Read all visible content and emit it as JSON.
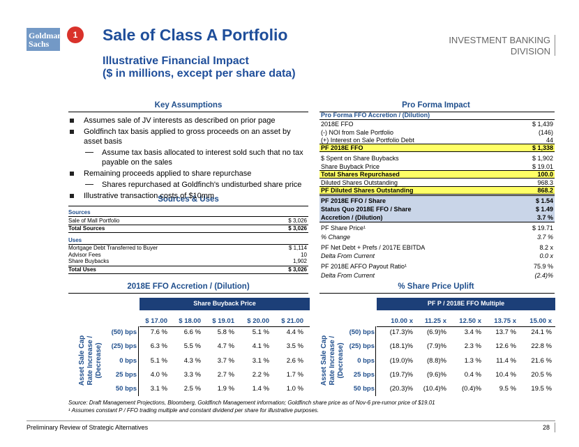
{
  "header": {
    "logo": [
      "Goldman",
      "Sachs"
    ],
    "badge": "1",
    "title": "Sale of Class A Portfolio",
    "subtitle": [
      "Illustrative Financial Impact",
      "($ in millions, except per share data)"
    ],
    "division": [
      "INVESTMENT BANKING",
      "DIVISION"
    ]
  },
  "key_assumptions": {
    "title": "Key Assumptions",
    "bullets": [
      {
        "text": "Assumes sale of JV interests as described on prior page",
        "sub": []
      },
      {
        "text": "Goldfinch tax basis applied to gross proceeds on an asset by asset basis",
        "sub": [
          "Assume tax basis allocated to interest sold such that no tax payable on the sales"
        ]
      },
      {
        "text": "Remaining proceeds applied to share repurchase",
        "sub": [
          "Shares repurchased at Goldfinch's undisturbed share price"
        ]
      },
      {
        "text": "Illustrative transaction costs of $10mm",
        "sub": []
      }
    ]
  },
  "sources_uses": {
    "title": "Sources & Uses",
    "sources_header": "Sources",
    "sources": [
      [
        "Sale of Mall Portfolio",
        "$ 3,026"
      ]
    ],
    "total_sources": [
      "Total Sources",
      "$ 3,026"
    ],
    "uses_header": "Uses",
    "uses": [
      [
        "Mortgage Debt Transferred to Buyer",
        "$ 1,114"
      ],
      [
        "Advisor Fees",
        "10"
      ],
      [
        "Share Buybacks",
        "1,902"
      ]
    ],
    "total_uses": [
      "Total Uses",
      "$ 3,026"
    ]
  },
  "pro_forma": {
    "title": "Pro Forma Impact",
    "header": "Pro Forma FFO Accretion / (Dilution)",
    "rows": [
      [
        "2018E FFO",
        "$ 1,439"
      ],
      [
        "(-) NOI from Sale Portfolio",
        "(146)"
      ],
      [
        "(+) Interest on Sale Portfolio Debt",
        "44"
      ],
      [
        "PF 2018E FFO",
        "$ 1,338"
      ],
      [
        "$ Spent on Share Buybacks",
        "$ 1,902"
      ],
      [
        "Share Buyback Price",
        "$ 19.01"
      ],
      [
        "Total Shares Repurchased",
        "100.0"
      ],
      [
        "Diluted Shares Outstanding",
        "968.3"
      ],
      [
        "PF Diluted Shares Outstanding",
        "868.2"
      ],
      [
        "PF 2018E FFO / Share",
        "$ 1.54"
      ],
      [
        "Status Quo 2018E FFO / Share",
        "$ 1.49"
      ],
      [
        "Accretion / (Dilution)",
        "3.7 %"
      ],
      [
        "PF Share Price¹",
        "$ 19.71"
      ],
      [
        "% Change",
        "3.7 %"
      ],
      [
        "PF Net Debt + Prefs / 2017E EBITDA",
        "8.2 x"
      ],
      [
        "Delta From Current",
        "0.0 x"
      ],
      [
        "PF 2018E AFFO Payout Ratio¹",
        "75.9 %"
      ],
      [
        "Delta From Current",
        "(2.4)%"
      ]
    ]
  },
  "sensitivity_left": {
    "title": "2018E FFO Accretion / (Dilution)",
    "bar": "Share Buyback Price",
    "axis": "Asset Sale Cap Rate Increase / (Decrease)",
    "columns": [
      "$ 17.00",
      "$ 18.00",
      "$ 19.01",
      "$ 20.00",
      "$ 21.00"
    ],
    "row_labels": [
      "(50) bps",
      "(25) bps",
      "0 bps",
      "25 bps",
      "50 bps"
    ],
    "rows": [
      [
        "7.6 %",
        "6.6 %",
        "5.8 %",
        "5.1 %",
        "4.4 %"
      ],
      [
        "6.3 %",
        "5.5 %",
        "4.7 %",
        "4.1 %",
        "3.5 %"
      ],
      [
        "5.1 %",
        "4.3 %",
        "3.7 %",
        "3.1 %",
        "2.6 %"
      ],
      [
        "4.0 %",
        "3.3 %",
        "2.7 %",
        "2.2 %",
        "1.7 %"
      ],
      [
        "3.1 %",
        "2.5 %",
        "1.9 %",
        "1.4 %",
        "1.0 %"
      ]
    ]
  },
  "sensitivity_right": {
    "title": "% Share Price Uplift",
    "bar": "PF P / 2018E FFO Multiple",
    "axis": "Asset Sale Cap Rate Increase / (Decrease)",
    "columns": [
      "10.00 x",
      "11.25 x",
      "12.50 x",
      "13.75 x",
      "15.00 x"
    ],
    "row_labels": [
      "(50) bps",
      "(25) bps",
      "0 bps",
      "25 bps",
      "50 bps"
    ],
    "rows": [
      [
        "(17.3)%",
        "(6.9)%",
        "3.4 %",
        "13.7 %",
        "24.1 %"
      ],
      [
        "(18.1)%",
        "(7.9)%",
        "2.3 %",
        "12.6 %",
        "22.8 %"
      ],
      [
        "(19.0)%",
        "(8.8)%",
        "1.3 %",
        "11.4 %",
        "21.6 %"
      ],
      [
        "(19.7)%",
        "(9.6)%",
        "0.4 %",
        "10.4 %",
        "20.5 %"
      ],
      [
        "(20.3)%",
        "(10.4)%",
        "(0.4)%",
        "9.5 %",
        "19.5 %"
      ]
    ]
  },
  "footnotes": [
    "Source: Draft Management Projections, Bloomberg, Goldfinch Management information; Goldfinch share price as of Nov-6 pre-rumor price of $19.01",
    "¹ Assumes constant P / FFO trading multiple and constant dividend per share for illustrative purposes."
  ],
  "footer": {
    "text": "Preliminary Review of Strategic Alternatives",
    "page": "28"
  }
}
